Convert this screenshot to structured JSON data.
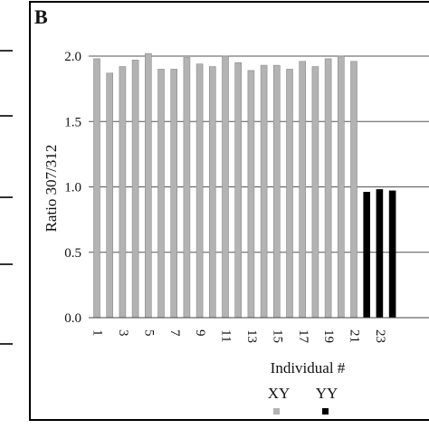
{
  "panel_label": "B",
  "colors": {
    "xy": "#b3b3b3",
    "yy": "#000000",
    "grid": "#555555",
    "frame": "#000000"
  },
  "chart_data": {
    "type": "bar",
    "title": "",
    "xlabel": "Individual #",
    "ylabel": "Ratio 307/312",
    "ylim": [
      0,
      2.2
    ],
    "yticks": [
      "0.0",
      "0.5",
      "1.0",
      "1.5",
      "2.0"
    ],
    "ytick_values": [
      0,
      0.5,
      1.0,
      1.5,
      2.0
    ],
    "categories": [
      1,
      2,
      3,
      4,
      5,
      6,
      7,
      8,
      9,
      10,
      11,
      12,
      13,
      14,
      15,
      16,
      17,
      18,
      19,
      20,
      21,
      22,
      23,
      24
    ],
    "xtick_labels": [
      "1",
      "3",
      "5",
      "7",
      "9",
      "11",
      "13",
      "15",
      "17",
      "19",
      "21",
      "23"
    ],
    "xtick_positions": [
      1,
      3,
      5,
      7,
      9,
      11,
      13,
      15,
      17,
      19,
      21,
      23
    ],
    "series": [
      {
        "name": "XY",
        "x": [
          1,
          2,
          3,
          4,
          5,
          6,
          7,
          8,
          9,
          10,
          11,
          12,
          13,
          14,
          15,
          16,
          17,
          18,
          19,
          20,
          21
        ],
        "values": [
          1.98,
          1.87,
          1.92,
          1.97,
          2.02,
          1.9,
          1.9,
          1.99,
          1.94,
          1.92,
          2.0,
          1.95,
          1.89,
          1.93,
          1.93,
          1.9,
          1.96,
          1.92,
          1.98,
          2.0,
          1.96
        ]
      },
      {
        "name": "YY",
        "x": [
          22,
          23,
          24
        ],
        "values": [
          0.96,
          0.98,
          0.97
        ]
      }
    ],
    "legend": {
      "placement": "bottom",
      "entries": [
        "XY",
        "YY"
      ]
    },
    "grid": true
  }
}
